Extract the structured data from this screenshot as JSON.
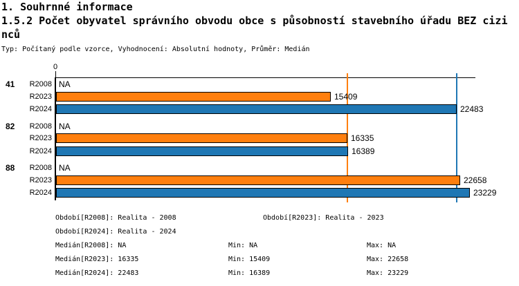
{
  "header": {
    "line1": "1. Souhrnné informace",
    "line2": "1.5.2 Počet obyvatel správního obvodu obce s působností stavebního úřadu BEZ cizinců",
    "subtitle": "Typ: Počítaný podle vzorce, Vyhodnocení: Absolutní hodnoty, Průměr: Medián"
  },
  "chart_data": {
    "type": "bar",
    "orientation": "horizontal",
    "title": "1.5.2 Počet obyvatel správního obvodu obce s působností stavebního úřadu BEZ cizinců",
    "categories": [
      "41",
      "82",
      "88"
    ],
    "series": [
      {
        "name": "R2008",
        "color": null,
        "values": [
          null,
          null,
          null
        ],
        "display": [
          "NA",
          "NA",
          "NA"
        ]
      },
      {
        "name": "R2023",
        "color": "#ff7f0e",
        "values": [
          15409,
          16335,
          22658
        ],
        "display": [
          "15409",
          "16335",
          "22658"
        ]
      },
      {
        "name": "R2024",
        "color": "#1f77b4",
        "values": [
          22483,
          16389,
          23229
        ],
        "display": [
          "22483",
          "16389",
          "23229"
        ]
      }
    ],
    "axis": {
      "tick_label": "0",
      "min": 0,
      "grid": false
    },
    "reference_lines": [
      {
        "name": "median-r2023",
        "value": 16335,
        "color": "#ff7f0e"
      },
      {
        "name": "median-r2024",
        "value": 22483,
        "color": "#1f77b4"
      }
    ],
    "legend_position": "none"
  },
  "footer": {
    "rows": [
      {
        "cells": [
          {
            "slot": "a",
            "name": "stat-obdobi-r2008",
            "text": "Období[R2008]: Realita - 2008"
          },
          {
            "slot": "b",
            "name": "stat-obdobi-r2023",
            "text": "Období[R2023]: Realita - 2023"
          }
        ]
      },
      {
        "cells": [
          {
            "slot": "a",
            "name": "stat-obdobi-r2024",
            "text": "Období[R2024]: Realita - 2024"
          }
        ]
      },
      {
        "cells": [
          {
            "slot": "a",
            "name": "stat-median-r2008",
            "text": "Medián[R2008]: NA"
          },
          {
            "slot": "min",
            "name": "stat-min-r2008",
            "text": "Min: NA"
          },
          {
            "slot": "max",
            "name": "stat-max-r2008",
            "text": "Max: NA"
          }
        ]
      },
      {
        "cells": [
          {
            "slot": "a",
            "name": "stat-median-r2023",
            "text": "Medián[R2023]: 16335"
          },
          {
            "slot": "min",
            "name": "stat-min-r2023",
            "text": "Min: 15409"
          },
          {
            "slot": "max",
            "name": "stat-max-r2023",
            "text": "Max: 22658"
          }
        ]
      },
      {
        "cells": [
          {
            "slot": "a",
            "name": "stat-median-r2024",
            "text": "Medián[R2024]: 22483"
          },
          {
            "slot": "min",
            "name": "stat-min-r2024",
            "text": "Min: 16389"
          },
          {
            "slot": "max",
            "name": "stat-max-r2024",
            "text": "Max: 23229"
          }
        ]
      }
    ]
  }
}
